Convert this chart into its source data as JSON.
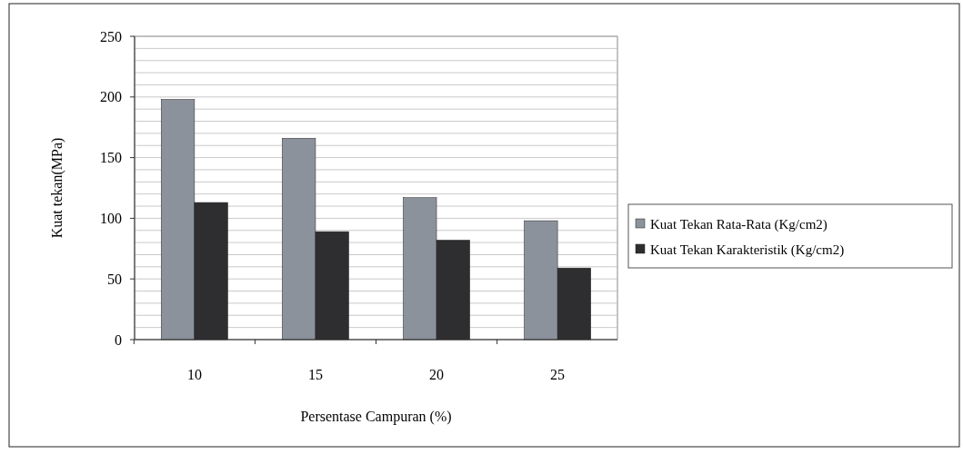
{
  "chart_data": {
    "type": "bar",
    "xlabel": "Persentase Campuran (%)",
    "ylabel": "Kuat tekan(MPa)",
    "categories": [
      "10",
      "15",
      "20",
      "25"
    ],
    "series": [
      {
        "name": "Kuat Tekan Rata-Rata (Kg/cm2)",
        "color": "#8c929c",
        "values": [
          198,
          166,
          117,
          98
        ]
      },
      {
        "name": "Kuat Tekan Karakteristik (Kg/cm2)",
        "color": "#2e2e30",
        "values": [
          113,
          89,
          82,
          59
        ]
      }
    ],
    "ylim": [
      0,
      250
    ],
    "yticks": [
      0,
      {
        "value": 10,
        "label": null
      },
      {
        "value": 20,
        "label": null
      },
      {
        "value": 30,
        "label": null
      },
      {
        "value": 40,
        "label": null
      },
      50,
      {
        "value": 60,
        "label": null
      },
      {
        "value": 70,
        "label": null
      },
      {
        "value": 80,
        "label": null
      },
      {
        "value": 90,
        "label": null
      },
      100,
      {
        "value": 110,
        "label": null
      },
      {
        "value": 120,
        "label": null
      },
      {
        "value": 130,
        "label": null
      },
      {
        "value": 140,
        "label": null
      },
      150,
      {
        "value": 160,
        "label": null
      },
      {
        "value": 170,
        "label": null
      },
      {
        "value": 180,
        "label": null
      },
      {
        "value": 190,
        "label": null
      },
      200,
      {
        "value": 210,
        "label": null
      },
      {
        "value": 220,
        "label": null
      },
      {
        "value": 230,
        "label": null
      },
      {
        "value": 240,
        "label": null
      },
      250
    ],
    "grid": "y",
    "legend": "right"
  }
}
